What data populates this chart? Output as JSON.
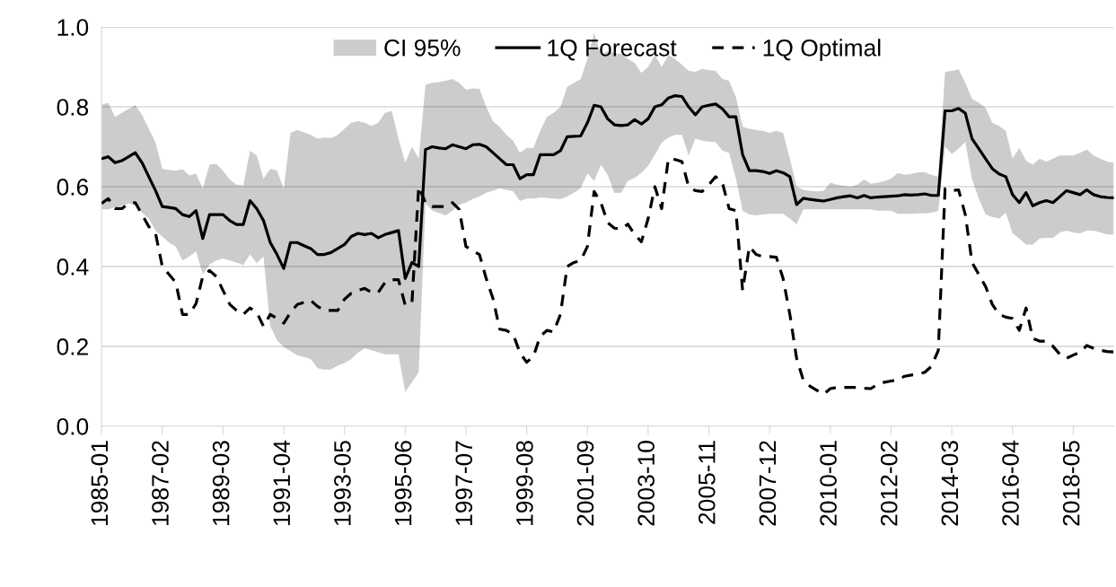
{
  "chart_data": {
    "type": "line",
    "categories": [
      "1985-01",
      null,
      null,
      null,
      null,
      null,
      null,
      null,
      null,
      "1987-02",
      null,
      null,
      null,
      null,
      null,
      null,
      null,
      null,
      "1989-03",
      null,
      null,
      null,
      null,
      null,
      null,
      null,
      null,
      "1991-04",
      null,
      null,
      null,
      null,
      null,
      null,
      null,
      null,
      "1993-05",
      null,
      null,
      null,
      null,
      null,
      null,
      null,
      null,
      "1995-06",
      null,
      null,
      null,
      null,
      null,
      null,
      null,
      null,
      "1997-07",
      null,
      null,
      null,
      null,
      null,
      null,
      null,
      null,
      "1999-08",
      null,
      null,
      null,
      null,
      null,
      null,
      null,
      null,
      "2001-09",
      null,
      null,
      null,
      null,
      null,
      null,
      null,
      null,
      "2003-10",
      null,
      null,
      null,
      null,
      null,
      null,
      null,
      null,
      "2005-11",
      null,
      null,
      null,
      null,
      null,
      null,
      null,
      null,
      "2007-12",
      null,
      null,
      null,
      null,
      null,
      null,
      null,
      null,
      "2010-01",
      null,
      null,
      null,
      null,
      null,
      null,
      null,
      null,
      "2012-02",
      null,
      null,
      null,
      null,
      null,
      null,
      null,
      null,
      "2014-03",
      null,
      null,
      null,
      null,
      null,
      null,
      null,
      null,
      "2016-04",
      null,
      null,
      null,
      null,
      null,
      null,
      null,
      null,
      "2018-05",
      null,
      null,
      null,
      null,
      null,
      null
    ],
    "series": [
      {
        "name": "1Q Forecast",
        "color": "#000000",
        "line_style": "solid",
        "lower": [
          0.543,
          0.543,
          0.548,
          0.552,
          0.558,
          0.555,
          0.535,
          0.52,
          0.49,
          0.475,
          0.46,
          0.45,
          0.415,
          0.425,
          0.438,
          0.38,
          0.405,
          0.415,
          0.42,
          0.415,
          0.41,
          0.404,
          0.43,
          0.408,
          0.425,
          0.25,
          0.215,
          0.198,
          0.188,
          0.178,
          0.173,
          0.168,
          0.145,
          0.142,
          0.142,
          0.152,
          0.158,
          0.168,
          0.184,
          0.195,
          0.19,
          0.185,
          0.18,
          0.18,
          0.18,
          0.086,
          0.11,
          0.135,
          0.558,
          0.54,
          0.534,
          0.528,
          0.54,
          0.555,
          0.56,
          0.569,
          0.575,
          0.585,
          0.59,
          0.596,
          0.592,
          0.588,
          0.564,
          0.57,
          0.57,
          0.573,
          0.572,
          0.57,
          0.569,
          0.575,
          0.585,
          0.596,
          0.633,
          0.614,
          0.655,
          0.63,
          0.584,
          0.585,
          0.615,
          0.622,
          0.635,
          0.652,
          0.68,
          0.71,
          0.723,
          0.73,
          0.73,
          0.678,
          0.72,
          0.715,
          0.713,
          0.712,
          0.69,
          0.685,
          0.62,
          0.54,
          0.53,
          0.528,
          0.53,
          0.532,
          0.532,
          0.532,
          0.52,
          0.506,
          0.543,
          0.543,
          0.543,
          0.543,
          0.543,
          0.543,
          0.543,
          0.543,
          0.543,
          0.543,
          0.543,
          0.54,
          0.54,
          0.54,
          0.532,
          0.532,
          0.532,
          0.533,
          0.533,
          0.535,
          0.539,
          0.7,
          0.682,
          0.695,
          0.712,
          0.618,
          0.57,
          0.53,
          0.524,
          0.52,
          0.535,
          0.483,
          0.47,
          0.455,
          0.455,
          0.47,
          0.472,
          0.472,
          0.485,
          0.49,
          0.485,
          0.483,
          0.49,
          0.49,
          0.485,
          0.48,
          0.48
        ],
        "upper": [
          0.805,
          0.81,
          0.775,
          0.785,
          0.795,
          0.804,
          0.78,
          0.745,
          0.71,
          0.645,
          0.642,
          0.64,
          0.644,
          0.628,
          0.633,
          0.595,
          0.655,
          0.657,
          0.64,
          0.618,
          0.605,
          0.603,
          0.69,
          0.678,
          0.62,
          0.645,
          0.64,
          0.595,
          0.735,
          0.742,
          0.736,
          0.73,
          0.72,
          0.723,
          0.722,
          0.73,
          0.745,
          0.76,
          0.764,
          0.76,
          0.752,
          0.76,
          0.785,
          0.79,
          0.72,
          0.66,
          0.7,
          0.67,
          0.855,
          0.86,
          0.862,
          0.865,
          0.87,
          0.86,
          0.843,
          0.846,
          0.845,
          0.8,
          0.764,
          0.75,
          0.73,
          0.715,
          0.685,
          0.697,
          0.697,
          0.74,
          0.775,
          0.785,
          0.8,
          0.85,
          0.86,
          0.87,
          0.92,
          0.985,
          0.93,
          0.94,
          0.935,
          0.933,
          0.92,
          0.91,
          0.885,
          0.9,
          0.93,
          0.9,
          0.93,
          0.92,
          0.906,
          0.89,
          0.888,
          0.895,
          0.892,
          0.89,
          0.87,
          0.865,
          0.825,
          0.75,
          0.745,
          0.742,
          0.74,
          0.735,
          0.74,
          0.735,
          0.67,
          0.6,
          0.592,
          0.59,
          0.588,
          0.59,
          0.61,
          0.605,
          0.602,
          0.6,
          0.605,
          0.618,
          0.607,
          0.61,
          0.614,
          0.62,
          0.634,
          0.63,
          0.632,
          0.636,
          0.636,
          0.629,
          0.625,
          0.888,
          0.89,
          0.894,
          0.86,
          0.82,
          0.81,
          0.798,
          0.76,
          0.752,
          0.74,
          0.67,
          0.697,
          0.665,
          0.655,
          0.67,
          0.663,
          0.67,
          0.678,
          0.678,
          0.678,
          0.685,
          0.693,
          0.678,
          0.67,
          0.663,
          0.66
        ],
        "values": [
          0.67,
          0.675,
          0.66,
          0.665,
          0.675,
          0.685,
          0.66,
          0.625,
          0.59,
          0.55,
          0.548,
          0.545,
          0.53,
          0.525,
          0.54,
          0.47,
          0.53,
          0.53,
          0.53,
          0.515,
          0.505,
          0.505,
          0.565,
          0.545,
          0.515,
          0.46,
          0.43,
          0.395,
          0.46,
          0.46,
          0.452,
          0.445,
          0.43,
          0.43,
          0.435,
          0.445,
          0.455,
          0.475,
          0.483,
          0.48,
          0.483,
          0.472,
          0.48,
          0.485,
          0.49,
          0.37,
          0.41,
          0.4,
          0.693,
          0.7,
          0.697,
          0.695,
          0.705,
          0.7,
          0.695,
          0.705,
          0.706,
          0.7,
          0.685,
          0.67,
          0.655,
          0.655,
          0.62,
          0.63,
          0.63,
          0.68,
          0.68,
          0.68,
          0.69,
          0.725,
          0.726,
          0.727,
          0.76,
          0.804,
          0.8,
          0.77,
          0.755,
          0.753,
          0.755,
          0.768,
          0.757,
          0.77,
          0.8,
          0.805,
          0.822,
          0.828,
          0.826,
          0.8,
          0.78,
          0.8,
          0.804,
          0.807,
          0.795,
          0.775,
          0.775,
          0.68,
          0.64,
          0.64,
          0.638,
          0.633,
          0.64,
          0.635,
          0.625,
          0.555,
          0.571,
          0.568,
          0.566,
          0.564,
          0.568,
          0.572,
          0.575,
          0.577,
          0.572,
          0.578,
          0.572,
          0.574,
          0.575,
          0.576,
          0.577,
          0.58,
          0.579,
          0.58,
          0.582,
          0.578,
          0.578,
          0.79,
          0.79,
          0.796,
          0.784,
          0.72,
          0.695,
          0.67,
          0.645,
          0.632,
          0.625,
          0.58,
          0.56,
          0.585,
          0.552,
          0.56,
          0.565,
          0.56,
          0.575,
          0.59,
          0.585,
          0.58,
          0.592,
          0.58,
          0.575,
          0.573,
          0.572
        ]
      },
      {
        "name": "1Q Optimal",
        "color": "#000000",
        "line_style": "dashed",
        "values": [
          0.558,
          0.57,
          0.545,
          0.545,
          0.558,
          0.56,
          0.53,
          0.5,
          0.483,
          0.4,
          0.38,
          0.36,
          0.28,
          0.28,
          0.307,
          0.375,
          0.39,
          0.375,
          0.34,
          0.305,
          0.29,
          0.28,
          0.296,
          0.285,
          0.25,
          0.28,
          0.27,
          0.258,
          0.285,
          0.305,
          0.31,
          0.315,
          0.3,
          0.29,
          0.29,
          0.29,
          0.318,
          0.333,
          0.34,
          0.345,
          0.335,
          0.335,
          0.36,
          0.367,
          0.367,
          0.303,
          0.31,
          0.6,
          0.56,
          0.55,
          0.55,
          0.55,
          0.56,
          0.543,
          0.45,
          0.44,
          0.43,
          0.37,
          0.32,
          0.243,
          0.24,
          0.23,
          0.184,
          0.16,
          0.175,
          0.225,
          0.24,
          0.236,
          0.28,
          0.4,
          0.41,
          0.415,
          0.45,
          0.588,
          0.56,
          0.51,
          0.496,
          0.494,
          0.506,
          0.48,
          0.462,
          0.52,
          0.6,
          0.545,
          0.67,
          0.668,
          0.663,
          0.6,
          0.59,
          0.588,
          0.605,
          0.625,
          0.61,
          0.545,
          0.54,
          0.34,
          0.45,
          0.43,
          0.425,
          0.425,
          0.423,
          0.37,
          0.28,
          0.17,
          0.115,
          0.1,
          0.09,
          0.08,
          0.094,
          0.097,
          0.097,
          0.097,
          0.097,
          0.095,
          0.094,
          0.105,
          0.11,
          0.113,
          0.116,
          0.125,
          0.128,
          0.13,
          0.135,
          0.15,
          0.19,
          0.595,
          0.59,
          0.592,
          0.53,
          0.41,
          0.38,
          0.35,
          0.305,
          0.28,
          0.273,
          0.27,
          0.24,
          0.296,
          0.22,
          0.213,
          0.213,
          0.2,
          0.18,
          0.17,
          0.178,
          0.185,
          0.202,
          0.195,
          0.19,
          0.187,
          0.186
        ]
      }
    ],
    "ylim": [
      0,
      1
    ],
    "yticks": [
      {
        "value": 0,
        "label": "0.0"
      },
      {
        "value": 0.2,
        "label": "0.2"
      },
      {
        "value": 0.4,
        "label": "0.4"
      },
      {
        "value": 0.6,
        "label": "0.6"
      },
      {
        "value": 0.8,
        "label": "0.8"
      },
      {
        "value": 1,
        "label": "1.0"
      }
    ],
    "annotations": [
      "CI 95%"
    ],
    "grid": "y",
    "legend": "top"
  }
}
